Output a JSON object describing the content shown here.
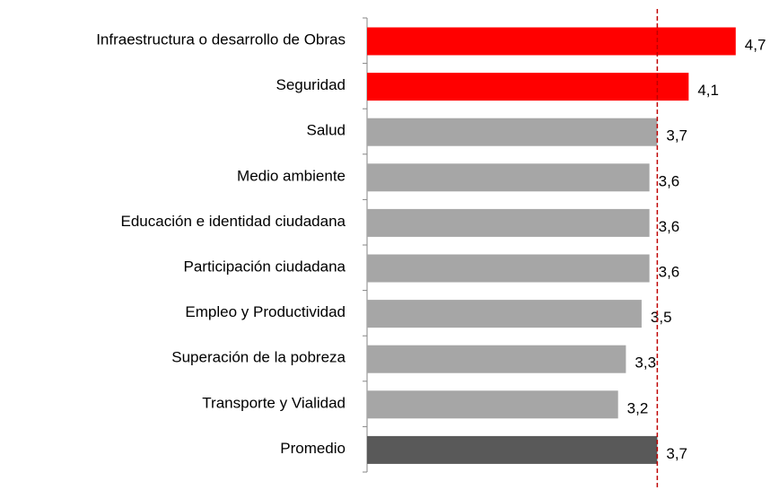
{
  "chart_data": {
    "type": "barh",
    "categories": [
      "Infraestructura o desarrollo de Obras",
      "Seguridad",
      "Salud",
      "Medio ambiente",
      "Educación e identidad ciudadana",
      "Participación ciudadana",
      "Empleo y Productividad",
      "Superación de la pobreza",
      "Transporte y Vialidad",
      "Promedio"
    ],
    "values": [
      4.7,
      4.1,
      3.7,
      3.6,
      3.6,
      3.6,
      3.5,
      3.3,
      3.2,
      3.7
    ],
    "value_labels": [
      "4,7",
      "4,1",
      "3,7",
      "3,6",
      "3,6",
      "3,6",
      "3,5",
      "3,3",
      "3,2",
      "3,7"
    ],
    "colors": [
      "#ff0000",
      "#ff0000",
      "#a6a6a6",
      "#a6a6a6",
      "#a6a6a6",
      "#a6a6a6",
      "#a6a6a6",
      "#a6a6a6",
      "#a6a6a6",
      "#595959"
    ],
    "xlim": [
      0,
      5
    ],
    "reference_line": 3.7,
    "reference_color": "#c00000"
  }
}
